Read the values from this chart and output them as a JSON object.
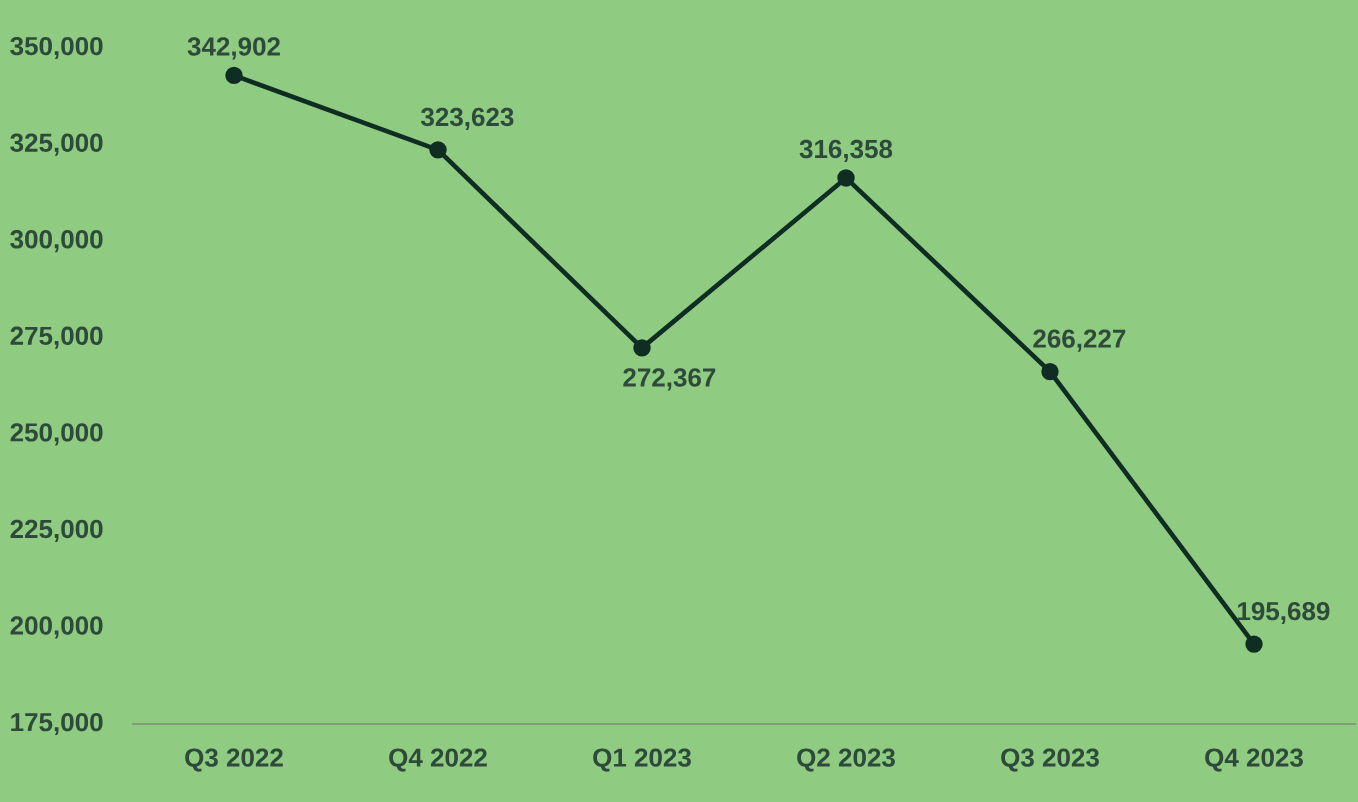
{
  "chart_data": {
    "type": "line",
    "categories": [
      "Q3 2022",
      "Q4 2022",
      "Q1 2023",
      "Q2 2023",
      "Q3 2023",
      "Q4 2023"
    ],
    "values": [
      342902,
      323623,
      272367,
      316358,
      266227,
      195689
    ],
    "value_labels": [
      "342,902",
      "323,623",
      "272,367",
      "316,358",
      "266,227",
      "195,689"
    ],
    "color": "#0f2d22",
    "marker": "circle",
    "line_style": "solid",
    "ylim": [
      175000,
      350000
    ],
    "yticks": [
      {
        "value": 175000,
        "label": "175,000"
      },
      {
        "value": 200000,
        "label": "200,000"
      },
      {
        "value": 225000,
        "label": "225,000"
      },
      {
        "value": 250000,
        "label": "250,000"
      },
      {
        "value": 275000,
        "label": "275,000"
      },
      {
        "value": 300000,
        "label": "300,000"
      },
      {
        "value": 325000,
        "label": "325,000"
      },
      {
        "value": 350000,
        "label": "350,000"
      }
    ]
  }
}
